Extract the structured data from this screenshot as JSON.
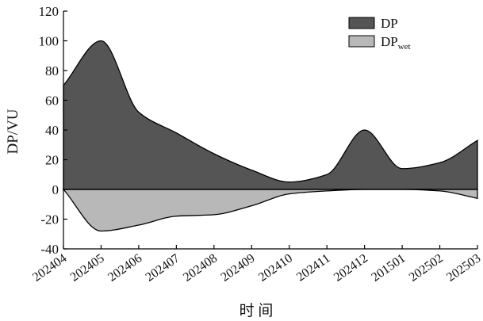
{
  "chart_data": {
    "type": "area",
    "categories": [
      "202404",
      "202405",
      "202406",
      "202407",
      "202408",
      "202409",
      "202410",
      "202411",
      "202412",
      "201501",
      "202502",
      "202503"
    ],
    "series": [
      {
        "name": "DP",
        "sub": "",
        "color": "#555555",
        "values": [
          70,
          100,
          52,
          38,
          24,
          13,
          5,
          10,
          40,
          14,
          18,
          33
        ]
      },
      {
        "name": "DP",
        "sub": "wet",
        "color": "#b8b8b8",
        "values": [
          0,
          -28,
          -24,
          -18,
          -17,
          -11,
          -3,
          -1,
          0,
          0,
          -1,
          -6
        ]
      }
    ],
    "xlabel": "时 间",
    "ylabel": "DP/VU",
    "ylim": [
      -40,
      120
    ],
    "yticks": [
      -40,
      -20,
      0,
      20,
      40,
      60,
      80,
      100,
      120
    ],
    "zero_line": true,
    "grid": false,
    "legend_position": "top-right"
  }
}
